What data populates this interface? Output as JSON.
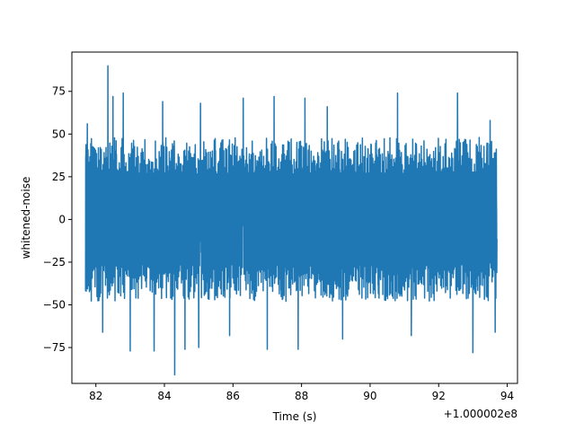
{
  "chart_data": {
    "type": "line",
    "title": "",
    "xlabel": "Time (s)",
    "ylabel": "whitened-noise",
    "x_offset_label": "+1.000002e8",
    "xlim": [
      81.3,
      94.3
    ],
    "ylim": [
      -96,
      98
    ],
    "x_ticks": [
      82,
      84,
      86,
      88,
      90,
      92,
      94
    ],
    "x_tick_labels": [
      "82",
      "84",
      "86",
      "88",
      "90",
      "92",
      "94"
    ],
    "y_ticks": [
      -75,
      -50,
      -25,
      0,
      25,
      50,
      75
    ],
    "y_tick_labels": [
      "−75",
      "−50",
      "−25",
      "0",
      "25",
      "50",
      "75"
    ],
    "grid": false,
    "series": [
      {
        "color": "#1f77b4",
        "x_start": 81.7,
        "x_end": 93.7,
        "envelope": {
          "typical_upper": 48,
          "typical_lower": -48,
          "max": 90,
          "min": -91
        },
        "notable_peaks": [
          {
            "x": 81.75,
            "y": 56
          },
          {
            "x": 82.35,
            "y": 90
          },
          {
            "x": 82.5,
            "y": 72
          },
          {
            "x": 82.8,
            "y": 74
          },
          {
            "x": 83.95,
            "y": 69
          },
          {
            "x": 85.05,
            "y": 68
          },
          {
            "x": 86.3,
            "y": 71
          },
          {
            "x": 87.2,
            "y": 72
          },
          {
            "x": 88.1,
            "y": 71
          },
          {
            "x": 88.75,
            "y": 66
          },
          {
            "x": 90.8,
            "y": 74
          },
          {
            "x": 92.55,
            "y": 74
          },
          {
            "x": 93.5,
            "y": 58
          }
        ],
        "notable_troughs": [
          {
            "x": 81.72,
            "y": -42
          },
          {
            "x": 82.2,
            "y": -66
          },
          {
            "x": 83.0,
            "y": -77
          },
          {
            "x": 83.7,
            "y": -77
          },
          {
            "x": 84.3,
            "y": -91
          },
          {
            "x": 84.6,
            "y": -76
          },
          {
            "x": 85.0,
            "y": -75
          },
          {
            "x": 85.9,
            "y": -68
          },
          {
            "x": 87.0,
            "y": -76
          },
          {
            "x": 87.9,
            "y": -76
          },
          {
            "x": 89.2,
            "y": -70
          },
          {
            "x": 91.2,
            "y": -68
          },
          {
            "x": 93.0,
            "y": -78
          },
          {
            "x": 93.65,
            "y": -66
          }
        ]
      }
    ]
  }
}
